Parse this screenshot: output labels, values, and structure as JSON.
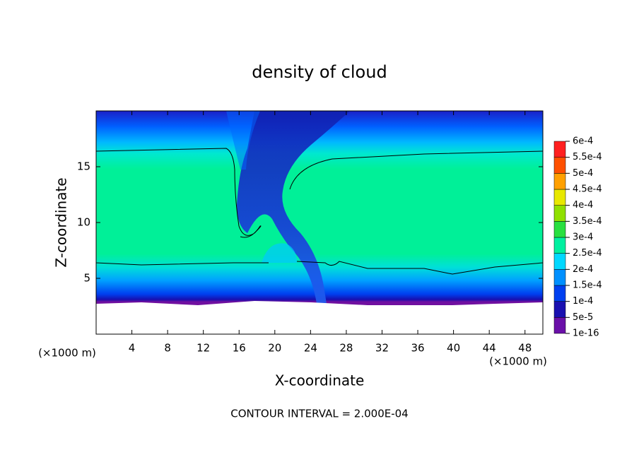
{
  "chart_data": {
    "type": "contour",
    "title": "density of cloud",
    "x_label": "X-coordinate",
    "y_label": "Z-coordinate",
    "unit_labels": [
      "(×1000 m)",
      "(×1000 m)"
    ],
    "footer": "CONTOUR INTERVAL = 2.000E-04",
    "xlim": [
      0,
      50
    ],
    "ylim": [
      0,
      20
    ],
    "xticks": [
      4,
      8,
      12,
      16,
      20,
      24,
      28,
      32,
      36,
      40,
      44,
      48
    ],
    "yticks": [
      5,
      10,
      15
    ],
    "colorbar": {
      "levels": [
        {
          "value": 1e-16,
          "label": "1e-16"
        },
        {
          "value": 5e-05,
          "label": "5e-5"
        },
        {
          "value": 0.0001,
          "label": "1e-4"
        },
        {
          "value": 0.00015,
          "label": "1.5e-4"
        },
        {
          "value": 0.0002,
          "label": "2e-4"
        },
        {
          "value": 0.00025,
          "label": "2.5e-4"
        },
        {
          "value": 0.0003,
          "label": "3e-4"
        },
        {
          "value": 0.00035,
          "label": "3.5e-4"
        },
        {
          "value": 0.0004,
          "label": "4e-4"
        },
        {
          "value": 0.00045,
          "label": "4.5e-4"
        },
        {
          "value": 0.0005,
          "label": "5e-4"
        },
        {
          "value": 0.00055,
          "label": "5.5e-4"
        },
        {
          "value": 0.0006,
          "label": "6e-4"
        }
      ],
      "colors": [
        "#6a10a8",
        "#1a10b0",
        "#0040f0",
        "#0090ff",
        "#00d8ff",
        "#00f0a0",
        "#28e040",
        "#90e000",
        "#e8e800",
        "#ffa000",
        "#ff5000",
        "#ff2020"
      ]
    }
  }
}
